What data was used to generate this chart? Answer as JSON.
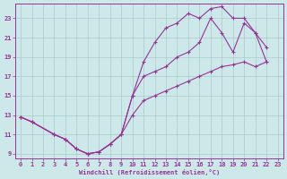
{
  "bg_color": "#cce8e8",
  "line_color": "#993399",
  "grid_color": "#aacccc",
  "xlabel": "Windchill (Refroidissement éolien,°C)",
  "ylabel_ticks": [
    9,
    11,
    13,
    15,
    17,
    19,
    21,
    23
  ],
  "xlabel_ticks": [
    0,
    1,
    2,
    3,
    4,
    5,
    6,
    7,
    8,
    9,
    10,
    11,
    12,
    13,
    14,
    15,
    16,
    17,
    18,
    19,
    20,
    21,
    22,
    23
  ],
  "xlim": [
    -0.5,
    23.5
  ],
  "ylim": [
    8.5,
    24.5
  ],
  "curve_bottom_x": [
    0,
    1,
    3,
    4,
    5,
    6,
    7,
    8,
    9,
    10,
    11,
    12,
    13,
    14,
    15,
    16,
    17,
    18,
    19,
    20,
    21,
    22
  ],
  "curve_bottom_y": [
    12.8,
    12.3,
    11.0,
    10.5,
    9.5,
    9.0,
    9.2,
    10.0,
    11.0,
    13.0,
    14.5,
    15.0,
    15.5,
    16.0,
    16.5,
    17.0,
    17.5,
    18.0,
    18.2,
    18.5,
    18.0,
    18.5
  ],
  "curve_mid_x": [
    0,
    1,
    3,
    4,
    5,
    6,
    7,
    8,
    9,
    10,
    11,
    12,
    13,
    14,
    15,
    16,
    17,
    18,
    19,
    20,
    21,
    22
  ],
  "curve_mid_y": [
    12.8,
    12.3,
    11.0,
    10.5,
    9.5,
    9.0,
    9.2,
    10.0,
    11.0,
    15.0,
    17.0,
    17.5,
    18.0,
    19.0,
    19.5,
    20.5,
    23.0,
    21.5,
    19.5,
    22.5,
    21.5,
    20.0
  ],
  "curve_top_x": [
    0,
    1,
    3,
    4,
    5,
    6,
    7,
    8,
    9,
    10,
    11,
    12,
    13,
    14,
    15,
    16,
    17,
    18,
    19,
    20,
    21,
    22
  ],
  "curve_top_y": [
    12.8,
    12.3,
    11.0,
    10.5,
    9.5,
    9.0,
    9.2,
    10.0,
    11.0,
    15.0,
    18.5,
    20.5,
    22.0,
    22.5,
    23.5,
    23.0,
    24.0,
    24.2,
    23.0,
    23.0,
    21.5,
    18.5
  ]
}
